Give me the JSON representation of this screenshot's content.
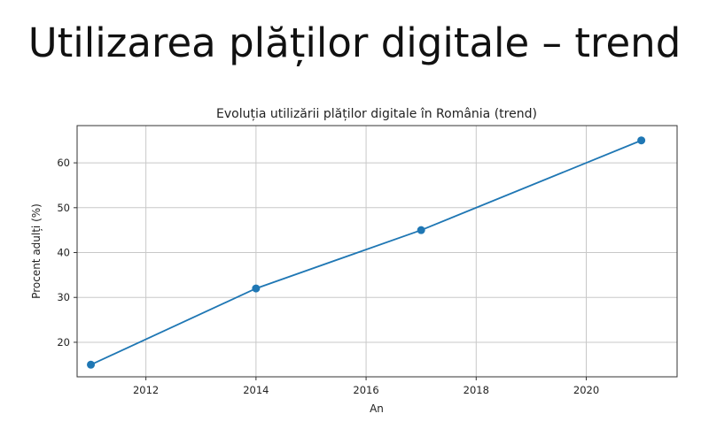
{
  "slide": {
    "title": "Utilizarea plăților digitale – trend"
  },
  "chart_data": {
    "type": "line",
    "title": "Evoluția utilizării plăților digitale în România (trend)",
    "xlabel": "An",
    "ylabel": "Procent adulți (%)",
    "xlim": [
      2010.75,
      2021.65
    ],
    "ylim": [
      12.3,
      68.3
    ],
    "xticks": [
      2012,
      2014,
      2016,
      2018,
      2020
    ],
    "yticks": [
      20,
      30,
      40,
      50,
      60
    ],
    "grid": true,
    "marker": "circle",
    "color": "#1f77b4",
    "series": [
      {
        "x": [
          2011,
          2014,
          2017,
          2021
        ],
        "y": [
          15,
          32,
          45,
          65
        ]
      }
    ]
  }
}
